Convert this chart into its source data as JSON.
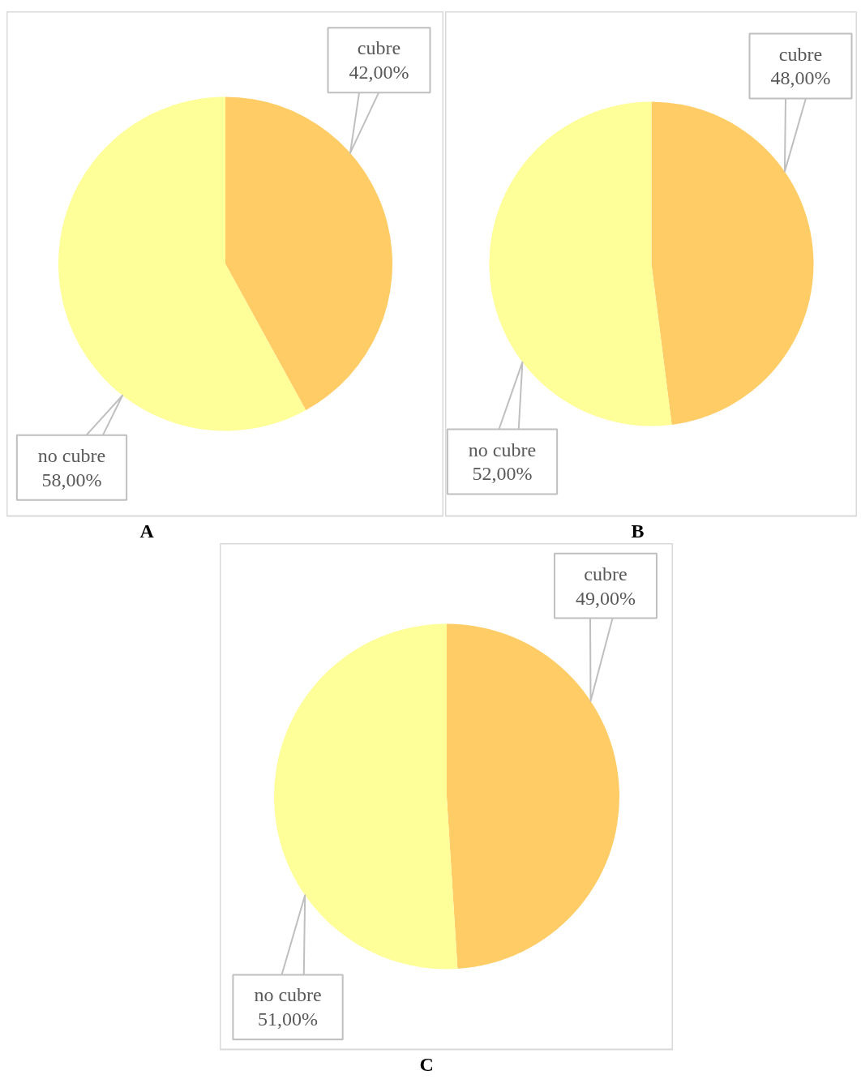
{
  "chart_data": [
    {
      "type": "pie",
      "title": "A",
      "categories": [
        "cubre",
        "no cubre"
      ],
      "values": [
        42,
        58
      ],
      "colors": [
        "#ffcc66",
        "#ffff99"
      ],
      "value_labels": [
        "42,00%",
        "58,00%"
      ]
    },
    {
      "type": "pie",
      "title": "B",
      "categories": [
        "cubre",
        "no cubre"
      ],
      "values": [
        48,
        52
      ],
      "colors": [
        "#ffcc66",
        "#ffff99"
      ],
      "value_labels": [
        "48,00%",
        "52,00%"
      ]
    },
    {
      "type": "pie",
      "title": "C",
      "categories": [
        "cubre",
        "no cubre"
      ],
      "values": [
        49,
        51
      ],
      "colors": [
        "#ffcc66",
        "#ffff99"
      ],
      "value_labels": [
        "49,00%",
        "51,00%"
      ]
    }
  ]
}
